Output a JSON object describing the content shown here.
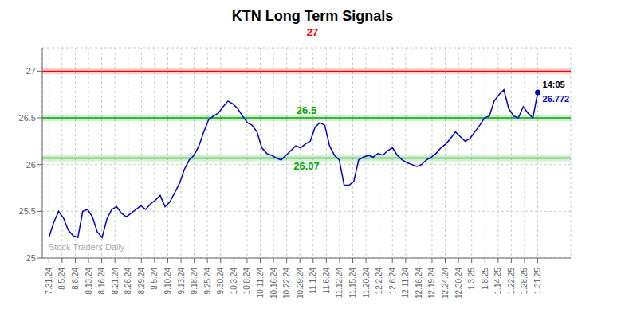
{
  "chart_data": {
    "type": "line",
    "title": "KTN Long Term Signals",
    "watermark": "Stock Traders Daily",
    "x": [
      0,
      0.3663,
      0.7327,
      1.099,
      1.4653,
      1.8317,
      2.198,
      2.5644,
      2.9307,
      3.297,
      3.6634,
      4.0297,
      4.396,
      4.7624,
      5.1287,
      5.495,
      5.8614,
      6.2277,
      6.5941,
      6.9604,
      7.3267,
      7.6931,
      8.0594,
      8.4257,
      8.7921,
      9.1584,
      9.5248,
      9.8911,
      10.2574,
      10.6238,
      10.9901,
      11.3564,
      11.7228,
      12.0891,
      12.4554,
      12.8218,
      13.1881,
      13.5545,
      13.9208,
      14.2871,
      14.6535,
      15.0198,
      15.3861,
      15.7525,
      16.1188,
      16.4851,
      16.8515,
      17.2178,
      17.5842,
      17.9505,
      18.3168,
      18.6832,
      19.0495,
      19.4158,
      19.7822,
      20.1485,
      20.5149,
      20.8812,
      21.2475,
      21.6139,
      21.9802,
      22.3465,
      22.7129,
      23.0792,
      23.4455,
      23.8119,
      24.1782,
      24.5446,
      24.9109,
      25.2772,
      25.6436,
      26.0099,
      26.3762,
      26.7426,
      27.1089,
      27.4752,
      27.8416,
      28.2079,
      28.5743,
      28.9406,
      29.3069,
      29.6733,
      30.0396,
      30.4059,
      30.7723,
      31.1386,
      31.505,
      31.8713,
      32.2376,
      32.604,
      32.9703,
      33.3366,
      33.703,
      34.0693,
      34.4356,
      34.802,
      35.1683,
      35.5347,
      35.901,
      36.2673,
      36.6337,
      37
    ],
    "values": [
      25.22,
      25.38,
      25.5,
      25.43,
      25.3,
      25.24,
      25.22,
      25.5,
      25.52,
      25.44,
      25.28,
      25.22,
      25.42,
      25.52,
      25.55,
      25.48,
      25.44,
      25.48,
      25.52,
      25.56,
      25.52,
      25.58,
      25.62,
      25.67,
      25.55,
      25.6,
      25.7,
      25.8,
      25.95,
      26.05,
      26.1,
      26.2,
      26.35,
      26.48,
      26.52,
      26.55,
      26.62,
      26.68,
      26.65,
      26.6,
      26.52,
      26.45,
      26.42,
      26.35,
      26.18,
      26.12,
      26.1,
      26.07,
      26.05,
      26.1,
      26.15,
      26.2,
      26.18,
      26.22,
      26.25,
      26.4,
      26.45,
      26.42,
      26.2,
      26.1,
      26.05,
      25.78,
      25.78,
      25.82,
      26.05,
      26.08,
      26.1,
      26.08,
      26.12,
      26.1,
      26.15,
      26.18,
      26.1,
      26.05,
      26.02,
      26.0,
      25.98,
      26.0,
      26.05,
      26.08,
      26.12,
      26.18,
      26.22,
      26.28,
      26.35,
      26.3,
      26.25,
      26.28,
      26.35,
      26.42,
      26.5,
      26.52,
      26.68,
      26.75,
      26.8,
      26.6,
      26.52,
      26.5,
      26.62,
      26.55,
      26.5,
      26.772
    ],
    "color": "#0000cc",
    "last_point": {
      "value": 26.772,
      "label": "14:05",
      "color": "#0000cc"
    },
    "reference_lines": [
      {
        "value": 27.0,
        "label": "27",
        "color": "#ff0000"
      },
      {
        "value": 26.5,
        "label": "26.5",
        "color": "#00aa00"
      },
      {
        "value": 26.07,
        "label": "26.07",
        "color": "#00aa00"
      }
    ],
    "xlim": [
      -0.5,
      39.5
    ],
    "xticks": [
      {
        "value": 0,
        "label": "7.31.24"
      },
      {
        "value": 1,
        "label": "8.5.24"
      },
      {
        "value": 2,
        "label": "8.8.24"
      },
      {
        "value": 3,
        "label": "8.13.24"
      },
      {
        "value": 4,
        "label": "8.16.24"
      },
      {
        "value": 5,
        "label": "8.21.24"
      },
      {
        "value": 6,
        "label": "8.26.24"
      },
      {
        "value": 7,
        "label": "8.29.24"
      },
      {
        "value": 8,
        "label": "9.5.24"
      },
      {
        "value": 9,
        "label": "9.10.24"
      },
      {
        "value": 10,
        "label": "9.13.24"
      },
      {
        "value": 11,
        "label": "9.18.24"
      },
      {
        "value": 12,
        "label": "9.25.24"
      },
      {
        "value": 13,
        "label": "9.30.24"
      },
      {
        "value": 14,
        "label": "10.3.24"
      },
      {
        "value": 15,
        "label": "10.8.24"
      },
      {
        "value": 16,
        "label": "10.11.24"
      },
      {
        "value": 17,
        "label": "10.16.24"
      },
      {
        "value": 18,
        "label": "10.22.24"
      },
      {
        "value": 19,
        "label": "10.29.24"
      },
      {
        "value": 20,
        "label": "11.1.24"
      },
      {
        "value": 21,
        "label": "11.6.24"
      },
      {
        "value": 22,
        "label": "11.12.24"
      },
      {
        "value": 23,
        "label": "11.15.24"
      },
      {
        "value": 24,
        "label": "11.20.24"
      },
      {
        "value": 25,
        "label": "12.2.24"
      },
      {
        "value": 26,
        "label": "12.6.24"
      },
      {
        "value": 27,
        "label": "12.11.24"
      },
      {
        "value": 28,
        "label": "12.16.24"
      },
      {
        "value": 29,
        "label": "12.19.24"
      },
      {
        "value": 30,
        "label": "12.24.24"
      },
      {
        "value": 31,
        "label": "12.30.24"
      },
      {
        "value": 32,
        "label": "1.3.25"
      },
      {
        "value": 33,
        "label": "1.8.25"
      },
      {
        "value": 34,
        "label": "1.14.25"
      },
      {
        "value": 35,
        "label": "1.22.25"
      },
      {
        "value": 36,
        "label": "1.28.25"
      },
      {
        "value": 37,
        "label": "1.31.25"
      }
    ],
    "ylim": [
      25.0,
      27.25
    ],
    "yticks": [
      25,
      25.5,
      26,
      26.5,
      27
    ],
    "grid": true
  }
}
